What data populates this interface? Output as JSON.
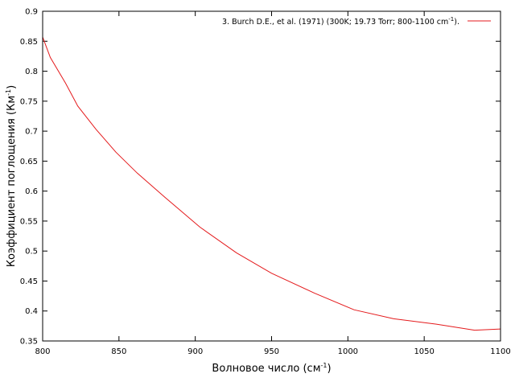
{
  "chart_data": {
    "type": "line",
    "xlabel": "Волновое число (см",
    "xlabel_sup": "-1",
    "xlabel_end": ")",
    "ylabel": "Коэффициент поглощения (Км",
    "ylabel_sup": "-1",
    "ylabel_end": ")",
    "xlim": [
      800,
      1100
    ],
    "ylim": [
      0.35,
      0.9
    ],
    "x_ticks": [
      "800",
      "850",
      "900",
      "950",
      "1000",
      "1050",
      "1100"
    ],
    "y_ticks": [
      "0.35",
      "0.4",
      "0.45",
      "0.5",
      "0.55",
      "0.6",
      "0.65",
      "0.7",
      "0.75",
      "0.8",
      "0.85",
      "0.9"
    ],
    "grid": false,
    "legend_position": "top-right",
    "series": [
      {
        "name": "3. Burch D.E., et al. (1971) (300K; 19.73 Torr; 800-1100 cm",
        "name_sup": "-1",
        "name_end": ").",
        "color": "#e41a1c",
        "x": [
          800,
          805,
          815,
          823,
          835,
          848,
          862,
          880,
          903,
          927,
          950,
          978,
          1004,
          1030,
          1058,
          1083,
          1100
        ],
        "y": [
          0.857,
          0.823,
          0.78,
          0.742,
          0.703,
          0.665,
          0.63,
          0.59,
          0.54,
          0.497,
          0.463,
          0.43,
          0.402,
          0.387,
          0.378,
          0.368,
          0.37
        ]
      }
    ]
  }
}
